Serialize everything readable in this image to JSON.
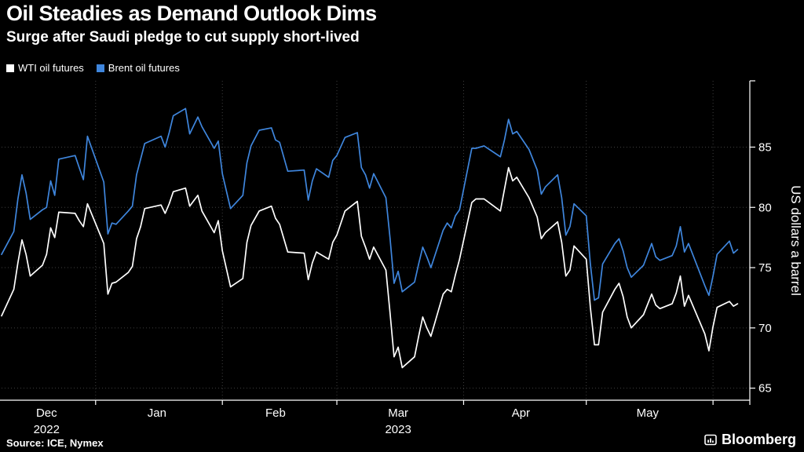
{
  "brand": {
    "name": "Bloomberg"
  },
  "chart_data": {
    "type": "line",
    "title": "Oil Steadies as Demand Outlook Dims",
    "subtitle": "Surge after Saudi pledge to cut supply short-lived",
    "ylabel": "US dollars a barrel",
    "source": "Source: ICE, Nymex",
    "ylim": [
      64,
      90.5
    ],
    "yticks": [
      65,
      70,
      75,
      80,
      85
    ],
    "grid": true,
    "legend_position": "top-left",
    "x_domain": [
      "2022-12-09",
      "2023-06-10"
    ],
    "month_boundaries": [
      "2023-01-01",
      "2023-02-01",
      "2023-03-01",
      "2023-04-01",
      "2023-05-01",
      "2023-06-01"
    ],
    "xticks": [
      {
        "label": "Dec",
        "year": "2022",
        "center": "2022-12-20"
      },
      {
        "label": "Jan",
        "center": "2023-01-16"
      },
      {
        "label": "Feb",
        "center": "2023-02-14"
      },
      {
        "label": "Mar",
        "year": "2023",
        "center": "2023-03-16"
      },
      {
        "label": "Apr",
        "center": "2023-04-15"
      },
      {
        "label": "May",
        "center": "2023-05-16"
      }
    ],
    "x": [
      "2022-12-09",
      "2022-12-12",
      "2022-12-13",
      "2022-12-14",
      "2022-12-15",
      "2022-12-16",
      "2022-12-19",
      "2022-12-20",
      "2022-12-21",
      "2022-12-22",
      "2022-12-23",
      "2022-12-27",
      "2022-12-28",
      "2022-12-29",
      "2022-12-30",
      "2023-01-03",
      "2023-01-04",
      "2023-01-05",
      "2023-01-06",
      "2023-01-09",
      "2023-01-10",
      "2023-01-11",
      "2023-01-12",
      "2023-01-13",
      "2023-01-17",
      "2023-01-18",
      "2023-01-19",
      "2023-01-20",
      "2023-01-23",
      "2023-01-24",
      "2023-01-26",
      "2023-01-27",
      "2023-01-30",
      "2023-01-31",
      "2023-02-01",
      "2023-02-03",
      "2023-02-06",
      "2023-02-07",
      "2023-02-08",
      "2023-02-10",
      "2023-02-13",
      "2023-02-14",
      "2023-02-15",
      "2023-02-17",
      "2023-02-21",
      "2023-02-22",
      "2023-02-23",
      "2023-02-24",
      "2023-02-27",
      "2023-02-28",
      "2023-03-01",
      "2023-03-03",
      "2023-03-06",
      "2023-03-07",
      "2023-03-08",
      "2023-03-09",
      "2023-03-10",
      "2023-03-13",
      "2023-03-14",
      "2023-03-15",
      "2023-03-16",
      "2023-03-17",
      "2023-03-20",
      "2023-03-21",
      "2023-03-22",
      "2023-03-23",
      "2023-03-24",
      "2023-03-27",
      "2023-03-28",
      "2023-03-29",
      "2023-03-30",
      "2023-03-31",
      "2023-04-03",
      "2023-04-04",
      "2023-04-06",
      "2023-04-10",
      "2023-04-11",
      "2023-04-12",
      "2023-04-13",
      "2023-04-14",
      "2023-04-17",
      "2023-04-19",
      "2023-04-20",
      "2023-04-21",
      "2023-04-24",
      "2023-04-25",
      "2023-04-26",
      "2023-04-27",
      "2023-04-28",
      "2023-05-01",
      "2023-05-02",
      "2023-05-03",
      "2023-05-04",
      "2023-05-05",
      "2023-05-08",
      "2023-05-09",
      "2023-05-10",
      "2023-05-11",
      "2023-05-12",
      "2023-05-15",
      "2023-05-17",
      "2023-05-18",
      "2023-05-19",
      "2023-05-22",
      "2023-05-23",
      "2023-05-24",
      "2023-05-25",
      "2023-05-26",
      "2023-05-30",
      "2023-05-31",
      "2023-06-01",
      "2023-06-02",
      "2023-06-05",
      "2023-06-06",
      "2023-06-07"
    ],
    "series": [
      {
        "name": "WTI oil futures",
        "color": "#ffffff",
        "values": [
          71.0,
          73.2,
          75.4,
          77.3,
          76.1,
          74.3,
          75.2,
          76.1,
          78.3,
          77.5,
          79.6,
          79.5,
          78.9,
          78.4,
          80.3,
          77.0,
          72.8,
          73.7,
          73.8,
          74.6,
          75.1,
          77.4,
          78.4,
          79.9,
          80.2,
          79.5,
          80.3,
          81.3,
          81.6,
          80.1,
          81.0,
          79.7,
          77.9,
          78.9,
          76.4,
          73.4,
          74.1,
          77.1,
          78.5,
          79.7,
          80.1,
          79.1,
          78.6,
          76.3,
          76.2,
          74.0,
          75.4,
          76.3,
          75.7,
          77.1,
          77.7,
          79.7,
          80.5,
          77.6,
          76.7,
          75.7,
          76.7,
          74.8,
          71.3,
          67.6,
          68.4,
          66.7,
          67.6,
          69.3,
          70.9,
          70.0,
          69.3,
          72.8,
          73.2,
          73.0,
          74.4,
          75.7,
          80.4,
          80.7,
          80.7,
          79.7,
          81.5,
          83.3,
          82.2,
          82.5,
          80.8,
          79.2,
          77.4,
          77.9,
          78.8,
          77.1,
          74.3,
          74.8,
          76.8,
          75.7,
          71.7,
          68.6,
          68.6,
          71.3,
          73.2,
          73.7,
          72.6,
          70.9,
          70.0,
          71.1,
          72.8,
          71.9,
          71.6,
          72.0,
          72.9,
          74.3,
          71.8,
          72.7,
          69.5,
          68.1,
          70.1,
          71.7,
          72.2,
          71.8,
          72.0
        ]
      },
      {
        "name": "Brent oil futures",
        "color": "#3f86dd",
        "values": [
          76.1,
          78.0,
          80.7,
          82.7,
          81.2,
          79.0,
          79.8,
          80.0,
          82.2,
          81.0,
          84.0,
          84.3,
          83.3,
          82.3,
          85.9,
          82.1,
          77.8,
          78.7,
          78.6,
          79.7,
          80.1,
          82.7,
          84.0,
          85.3,
          85.9,
          85.0,
          86.2,
          87.6,
          88.2,
          86.1,
          87.5,
          86.7,
          84.9,
          85.5,
          82.8,
          79.9,
          81.0,
          83.7,
          85.1,
          86.4,
          86.6,
          85.6,
          85.4,
          83.0,
          83.1,
          80.6,
          82.2,
          83.2,
          82.5,
          83.9,
          84.3,
          85.8,
          86.2,
          83.3,
          82.7,
          81.6,
          82.8,
          80.8,
          77.5,
          73.7,
          74.7,
          73.0,
          73.8,
          75.3,
          76.7,
          75.9,
          75.0,
          78.1,
          78.7,
          78.3,
          79.3,
          79.8,
          84.9,
          84.9,
          85.1,
          84.2,
          85.6,
          87.3,
          86.1,
          86.3,
          84.8,
          83.1,
          81.1,
          81.7,
          82.7,
          80.8,
          77.7,
          78.4,
          80.3,
          79.3,
          75.3,
          72.3,
          72.5,
          75.3,
          77.0,
          77.4,
          76.4,
          75.0,
          74.2,
          75.2,
          77.0,
          75.9,
          75.6,
          76.0,
          76.8,
          78.4,
          76.3,
          77.0,
          73.5,
          72.7,
          74.3,
          76.1,
          77.2,
          76.2,
          76.5
        ]
      }
    ]
  }
}
